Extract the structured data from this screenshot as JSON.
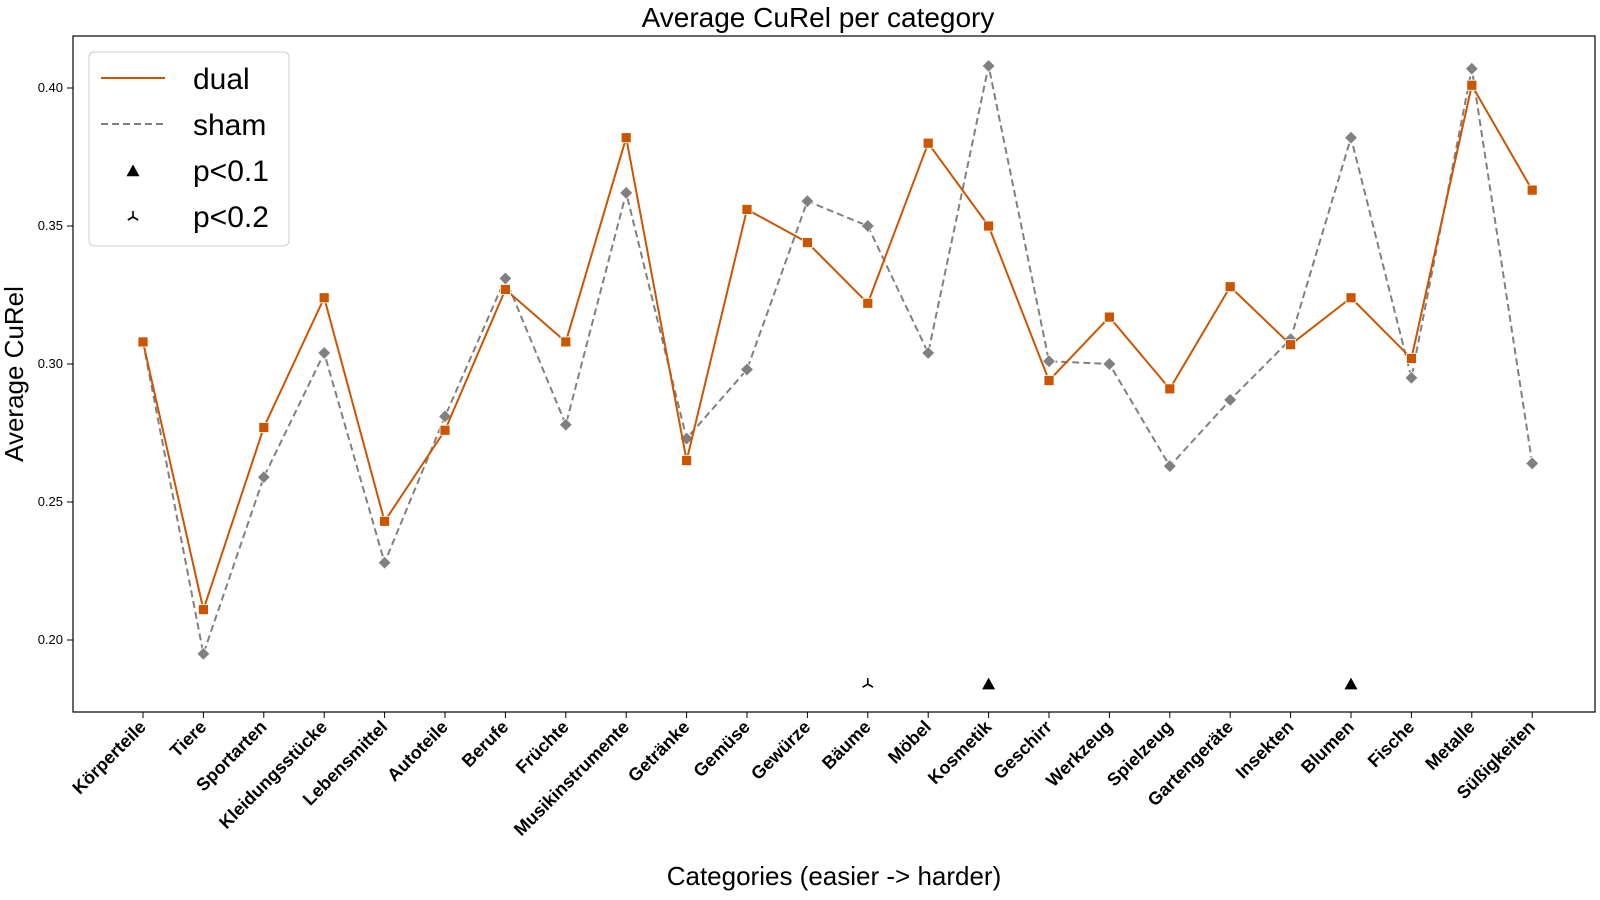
{
  "chart_data": {
    "type": "line",
    "title": "Average CuRel per category",
    "xlabel": "Categories (easier -> harder)",
    "ylabel": "Average CuRel",
    "ylim": [
      0.173,
      0.419
    ],
    "yticks": [
      0.2,
      0.25,
      0.3,
      0.35,
      0.4
    ],
    "ytick_labels": [
      "0.20",
      "0.25",
      "0.30",
      "0.35",
      "0.40"
    ],
    "grid": false,
    "legend_position": "top-left",
    "categories": [
      "Körperteile",
      "Tiere",
      "Sportarten",
      "Kleidungsstücke",
      "Lebensmittel",
      "Autoteile",
      "Berufe",
      "Früchte",
      "Musikinstrumente",
      "Getränke",
      "Gemüse",
      "Gewürze",
      "Bäume",
      "Möbel",
      "Kosmetik",
      "Geschirr",
      "Werkzeug",
      "Spielzeug",
      "Gartengeräte",
      "Insekten",
      "Blumen",
      "Fische",
      "Metalle",
      "Süßigkeiten"
    ],
    "series": [
      {
        "name": "dual",
        "color": "#cc5500",
        "line_style": "solid",
        "marker": "square",
        "values": [
          0.308,
          0.211,
          0.277,
          0.324,
          0.243,
          0.276,
          0.327,
          0.308,
          0.382,
          0.265,
          0.356,
          0.344,
          0.322,
          0.38,
          0.35,
          0.294,
          0.317,
          0.291,
          0.328,
          0.307,
          0.324,
          0.302,
          0.401,
          0.363
        ]
      },
      {
        "name": "sham",
        "color": "#808080",
        "line_style": "dashed",
        "marker": "diamond",
        "values": [
          0.308,
          0.195,
          0.259,
          0.304,
          0.228,
          0.281,
          0.331,
          0.278,
          0.362,
          0.273,
          0.298,
          0.359,
          0.35,
          0.304,
          0.408,
          0.301,
          0.3,
          0.263,
          0.287,
          0.309,
          0.382,
          0.295,
          0.407,
          0.264
        ]
      }
    ],
    "significance": [
      {
        "category": "Bäume",
        "level": "p<0.2",
        "marker": "tri-down",
        "y": 0.184
      },
      {
        "category": "Kosmetik",
        "level": "p<0.1",
        "marker": "triangle",
        "y": 0.184
      },
      {
        "category": "Blumen",
        "level": "p<0.1",
        "marker": "triangle",
        "y": 0.184
      }
    ],
    "legend": [
      {
        "label": "dual",
        "kind": "line",
        "color": "#cc5500",
        "line_style": "solid"
      },
      {
        "label": "sham",
        "kind": "line",
        "color": "#808080",
        "line_style": "dashed"
      },
      {
        "label": "p<0.1",
        "kind": "marker",
        "marker": "triangle",
        "color": "#000000"
      },
      {
        "label": "p<0.2",
        "kind": "marker",
        "marker": "tri-down",
        "color": "#000000"
      }
    ]
  }
}
